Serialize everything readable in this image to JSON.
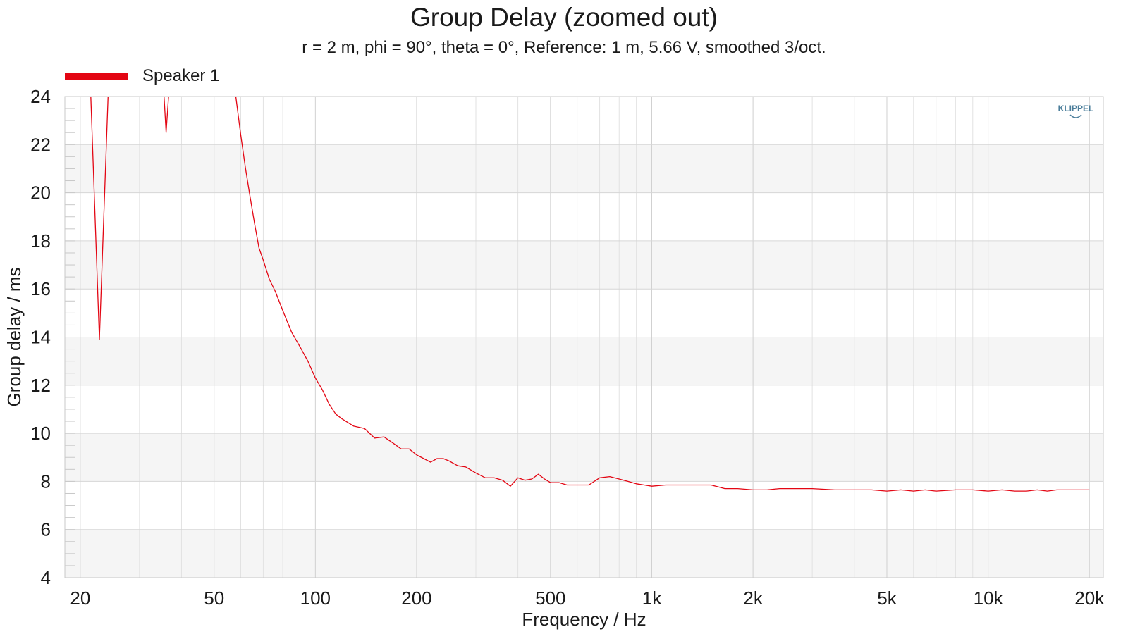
{
  "chart_data": {
    "type": "line",
    "title": "Group Delay (zoomed out)",
    "subtitle": "r = 2 m, phi = 90°, theta = 0°, Reference: 1 m, 5.66 V, smoothed 3/oct.",
    "xlabel": "Frequency / Hz",
    "ylabel": "Group delay / ms",
    "xscale": "log",
    "xlim": [
      18,
      22000
    ],
    "ylim": [
      4,
      24
    ],
    "xticks": [
      {
        "value": 20,
        "label": "20"
      },
      {
        "value": 50,
        "label": "50"
      },
      {
        "value": 100,
        "label": "100"
      },
      {
        "value": 200,
        "label": "200"
      },
      {
        "value": 500,
        "label": "500"
      },
      {
        "value": 1000,
        "label": "1k"
      },
      {
        "value": 2000,
        "label": "2k"
      },
      {
        "value": 5000,
        "label": "5k"
      },
      {
        "value": 10000,
        "label": "10k"
      },
      {
        "value": 20000,
        "label": "20k"
      }
    ],
    "yticks": [
      4,
      6,
      8,
      10,
      12,
      14,
      16,
      18,
      20,
      22,
      24
    ],
    "grid": true,
    "legend_position": "top-left",
    "series": [
      {
        "name": "Speaker 1",
        "color": "#e30613",
        "segments": [
          {
            "x": [
              21.5,
              22.8,
              24.2
            ],
            "y": [
              24,
              13.9,
              24
            ]
          },
          {
            "x": [
              35.5,
              36.0,
              36.6
            ],
            "y": [
              24,
              22.5,
              24
            ]
          },
          {
            "x": [
              58,
              60,
              62,
              64,
              66,
              68,
              70,
              73,
              76,
              80,
              85,
              90,
              95,
              100,
              105,
              110,
              115,
              120,
              130,
              140,
              150,
              160,
              170,
              180,
              190,
              200,
              210,
              220,
              230,
              240,
              250,
              265,
              280,
              300,
              320,
              340,
              360,
              380,
              400,
              420,
              440,
              460,
              480,
              500,
              530,
              560,
              600,
              650,
              700,
              750,
              800,
              850,
              900,
              950,
              1000,
              1100,
              1200,
              1300,
              1400,
              1500,
              1650,
              1800,
              2000,
              2200,
              2400,
              2600,
              2800,
              3000,
              3500,
              4000,
              4500,
              5000,
              5500,
              6000,
              6500,
              7000,
              8000,
              9000,
              10000,
              11000,
              12000,
              13000,
              14000,
              15000,
              16000,
              18000,
              20000
            ],
            "y": [
              24,
              22.4,
              21.0,
              19.8,
              18.7,
              17.7,
              17.2,
              16.4,
              15.9,
              15.1,
              14.2,
              13.6,
              13.0,
              12.3,
              11.8,
              11.2,
              10.8,
              10.6,
              10.3,
              10.2,
              9.8,
              9.85,
              9.6,
              9.35,
              9.35,
              9.1,
              8.95,
              8.8,
              8.95,
              8.95,
              8.85,
              8.65,
              8.6,
              8.35,
              8.15,
              8.15,
              8.05,
              7.8,
              8.15,
              8.05,
              8.1,
              8.3,
              8.1,
              7.95,
              7.95,
              7.85,
              7.85,
              7.85,
              8.15,
              8.2,
              8.1,
              8.0,
              7.9,
              7.85,
              7.8,
              7.85,
              7.85,
              7.85,
              7.85,
              7.85,
              7.7,
              7.7,
              7.65,
              7.65,
              7.7,
              7.7,
              7.7,
              7.7,
              7.65,
              7.65,
              7.65,
              7.6,
              7.65,
              7.6,
              7.65,
              7.6,
              7.65,
              7.65,
              7.6,
              7.65,
              7.6,
              7.6,
              7.65,
              7.6,
              7.65,
              7.65,
              7.65
            ]
          }
        ]
      }
    ]
  },
  "branding": {
    "logo_text": "KLIPPEL",
    "logo_color": "#4a7d9a"
  }
}
